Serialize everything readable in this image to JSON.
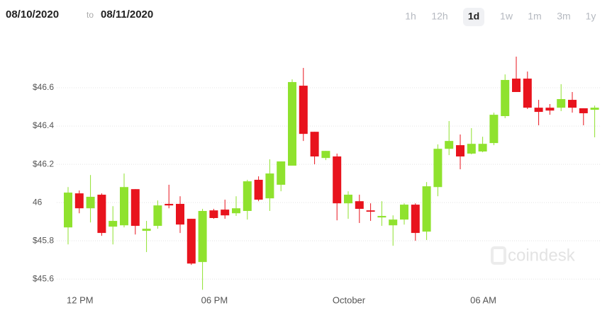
{
  "header": {
    "date_from": "08/10/2020",
    "date_separator": "to",
    "date_to": "08/11/2020",
    "ranges": [
      "1h",
      "12h",
      "1d",
      "1w",
      "1m",
      "3m",
      "1y"
    ],
    "active_range": "1d"
  },
  "watermark": "coindesk",
  "chart_data": {
    "type": "candlestick",
    "categories": [
      null,
      "12 PM",
      null,
      null,
      null,
      null,
      null,
      null,
      null,
      null,
      null,
      null,
      null,
      "06 PM",
      null,
      null,
      null,
      null,
      null,
      null,
      null,
      null,
      null,
      null,
      null,
      "October",
      null,
      null,
      null,
      null,
      null,
      null,
      null,
      null,
      null,
      null,
      null,
      "06 AM",
      null,
      null,
      null,
      null,
      null,
      null,
      null,
      null,
      null,
      null
    ],
    "open": [
      45.87,
      46.048,
      45.97,
      46.041,
      45.874,
      45.881,
      46.07,
      45.852,
      45.878,
      45.993,
      45.993,
      45.915,
      45.689,
      45.959,
      45.963,
      45.944,
      45.956,
      46.119,
      46.022,
      46.093,
      46.193,
      46.611,
      46.37,
      46.233,
      46.241,
      45.996,
      46.007,
      45.959,
      45.922,
      45.881,
      45.911,
      45.989,
      45.848,
      46.081,
      46.281,
      46.3,
      46.256,
      46.267,
      46.311,
      46.452,
      46.648,
      46.648,
      46.496,
      46.496,
      46.496,
      46.537,
      46.493,
      46.485
    ],
    "high": [
      46.081,
      46.063,
      46.144,
      46.048,
      45.981,
      46.152,
      46.07,
      45.904,
      46.011,
      46.093,
      46.033,
      45.915,
      45.967,
      45.967,
      46.015,
      46.033,
      46.119,
      46.137,
      46.226,
      46.215,
      46.644,
      46.704,
      46.37,
      46.27,
      46.256,
      46.059,
      46.041,
      45.996,
      46.007,
      45.933,
      45.996,
      45.996,
      46.107,
      46.304,
      46.426,
      46.356,
      46.389,
      46.344,
      46.47,
      46.67,
      46.763,
      46.685,
      46.537,
      46.515,
      46.619,
      46.578,
      46.493,
      46.507
    ],
    "low": [
      45.781,
      45.944,
      45.896,
      45.826,
      45.781,
      45.87,
      45.833,
      45.741,
      45.863,
      45.97,
      45.841,
      45.674,
      45.544,
      45.915,
      45.915,
      45.93,
      45.911,
      46.007,
      45.956,
      46.059,
      46.193,
      46.322,
      46.2,
      46.222,
      45.907,
      45.915,
      45.893,
      45.904,
      45.878,
      45.774,
      45.885,
      45.8,
      45.804,
      46.033,
      46.248,
      46.174,
      46.252,
      46.263,
      46.3,
      46.441,
      46.578,
      46.489,
      46.404,
      46.459,
      46.478,
      46.47,
      46.404,
      46.341
    ],
    "close": [
      46.052,
      45.97,
      46.03,
      45.841,
      45.904,
      46.081,
      45.878,
      45.863,
      45.985,
      45.985,
      45.885,
      45.681,
      45.956,
      45.919,
      45.933,
      45.97,
      46.111,
      46.015,
      46.152,
      46.215,
      46.63,
      46.359,
      46.241,
      46.27,
      45.996,
      46.041,
      45.967,
      45.952,
      45.93,
      45.911,
      45.989,
      45.841,
      46.085,
      46.281,
      46.322,
      46.241,
      46.307,
      46.307,
      46.459,
      46.641,
      46.578,
      46.496,
      46.474,
      46.481,
      46.541,
      46.496,
      46.467,
      46.496
    ],
    "up_color": "#8fe22e",
    "down_color": "#e8131d",
    "ylim": [
      45.56,
      46.8
    ],
    "yticks": [
      {
        "value": 45.6,
        "label": "$45.6"
      },
      {
        "value": 45.8,
        "label": "$45.8"
      },
      46,
      {
        "value": 46.2,
        "label": "$46.2"
      },
      {
        "value": 46.4,
        "label": "$46.4"
      },
      {
        "value": 46.6,
        "label": "$46.6"
      }
    ],
    "grid": true
  }
}
